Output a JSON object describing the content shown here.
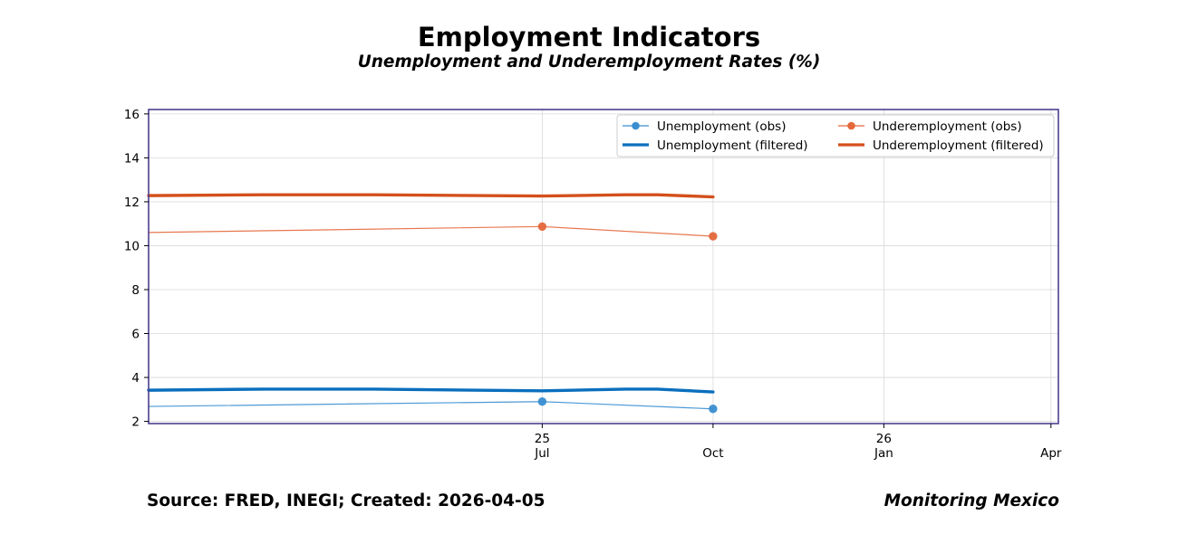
{
  "chart_data": {
    "type": "line",
    "title": "Employment Indicators",
    "subtitle": "Unemployment and Underemployment Rates (%)",
    "xlabel": "",
    "ylabel": "",
    "ylim": [
      1.9,
      16.2
    ],
    "xlim": [
      "2024-12-01",
      "2026-04-05"
    ],
    "yticks": [
      2,
      4,
      6,
      8,
      10,
      12,
      14,
      16
    ],
    "xticks": [
      {
        "date": "2025-07-01",
        "labels": [
          "25",
          "Jul"
        ]
      },
      {
        "date": "2025-10-01",
        "labels": [
          "",
          "Oct"
        ]
      },
      {
        "date": "2026-01-01",
        "labels": [
          "26",
          "Jan"
        ]
      },
      {
        "date": "2026-04-01",
        "labels": [
          "",
          "Apr"
        ]
      }
    ],
    "grid": true,
    "legend_position": "top-right",
    "series": [
      {
        "name": "Unemployment (obs)",
        "color": "#3a8ed0",
        "style": "thin-marker",
        "points": [
          {
            "x": "2024-12-01",
            "y": 2.68,
            "marker": false
          },
          {
            "x": "2025-07-01",
            "y": 2.9,
            "marker": true
          },
          {
            "x": "2025-10-01",
            "y": 2.57,
            "marker": true
          }
        ]
      },
      {
        "name": "Unemployment (filtered)",
        "color": "#0a6fbd",
        "style": "thick",
        "points": [
          {
            "x": "2024-12-01",
            "y": 3.42
          },
          {
            "x": "2025-02-01",
            "y": 3.47
          },
          {
            "x": "2025-04-01",
            "y": 3.47
          },
          {
            "x": "2025-07-01",
            "y": 3.39
          },
          {
            "x": "2025-08-15",
            "y": 3.47
          },
          {
            "x": "2025-09-01",
            "y": 3.47
          },
          {
            "x": "2025-10-01",
            "y": 3.34
          }
        ]
      },
      {
        "name": "Underemployment (obs)",
        "color": "#e4683c",
        "style": "thin-marker",
        "points": [
          {
            "x": "2024-12-01",
            "y": 10.6,
            "marker": false
          },
          {
            "x": "2025-07-01",
            "y": 10.87,
            "marker": true
          },
          {
            "x": "2025-10-01",
            "y": 10.43,
            "marker": true
          }
        ]
      },
      {
        "name": "Underemployment (filtered)",
        "color": "#d4501c",
        "style": "thick",
        "points": [
          {
            "x": "2024-12-01",
            "y": 12.28
          },
          {
            "x": "2025-02-01",
            "y": 12.32
          },
          {
            "x": "2025-04-01",
            "y": 12.32
          },
          {
            "x": "2025-07-01",
            "y": 12.26
          },
          {
            "x": "2025-08-15",
            "y": 12.32
          },
          {
            "x": "2025-09-01",
            "y": 12.32
          },
          {
            "x": "2025-10-01",
            "y": 12.22
          }
        ]
      }
    ]
  },
  "footer": {
    "source": "Source: FRED, INEGI; Created: 2026-04-05",
    "brand": "Monitoring Mexico"
  },
  "colors": {
    "frame": "#4b3f8f",
    "grid": "#d9d9d9"
  }
}
